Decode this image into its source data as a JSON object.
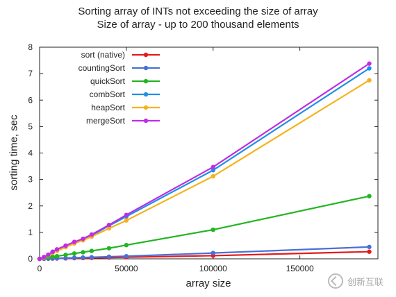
{
  "chart_data": {
    "type": "line",
    "title": "Sorting array of INTs not exceeding the size of array",
    "subtitle": "Size of array - up to 200 thousand elements",
    "xlabel": "array size",
    "ylabel": "sorting time, sec",
    "xlim": [
      0,
      195000
    ],
    "ylim": [
      0,
      8
    ],
    "xticks": [
      0,
      50000,
      100000,
      150000
    ],
    "yticks": [
      0,
      1,
      2,
      3,
      4,
      5,
      6,
      7,
      8
    ],
    "grid": false,
    "legend_position": "top-left",
    "x": [
      0,
      2500,
      5000,
      7500,
      10000,
      15000,
      20000,
      25000,
      30000,
      40000,
      50000,
      100000,
      190000
    ],
    "series": [
      {
        "name": "sort (native)",
        "color": "#e41a1c",
        "values": [
          0,
          0.003,
          0.006,
          0.009,
          0.012,
          0.018,
          0.025,
          0.03,
          0.035,
          0.05,
          0.06,
          0.12,
          0.27
        ]
      },
      {
        "name": "countingSort",
        "color": "#4a6fd8",
        "values": [
          0,
          0.005,
          0.01,
          0.015,
          0.02,
          0.03,
          0.04,
          0.05,
          0.06,
          0.08,
          0.1,
          0.22,
          0.45
        ]
      },
      {
        "name": "quickSort",
        "color": "#22b522",
        "values": [
          0,
          0.03,
          0.06,
          0.08,
          0.1,
          0.15,
          0.2,
          0.25,
          0.3,
          0.4,
          0.52,
          1.1,
          2.37
        ]
      },
      {
        "name": "combSort",
        "color": "#1e90e6",
        "values": [
          0,
          0.06,
          0.15,
          0.25,
          0.33,
          0.48,
          0.62,
          0.74,
          0.88,
          1.25,
          1.6,
          3.35,
          7.2
        ]
      },
      {
        "name": "heapSort",
        "color": "#f5b21b",
        "values": [
          0,
          0.05,
          0.14,
          0.23,
          0.3,
          0.44,
          0.58,
          0.7,
          0.84,
          1.15,
          1.45,
          3.12,
          6.75
        ]
      },
      {
        "name": "mergeSort",
        "color": "#c02ce6",
        "values": [
          0,
          0.07,
          0.16,
          0.27,
          0.36,
          0.5,
          0.64,
          0.76,
          0.92,
          1.28,
          1.66,
          3.47,
          7.38
        ]
      }
    ]
  },
  "watermark": {
    "text": "创新互联"
  }
}
